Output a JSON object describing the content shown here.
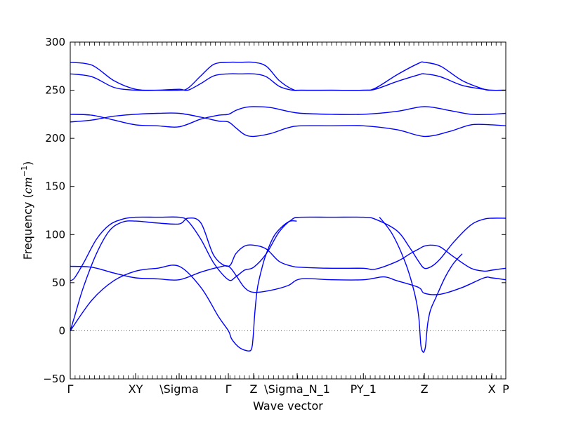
{
  "chart_data": {
    "type": "line",
    "xlabel": "Wave vector",
    "ylabel_prefix": "Frequency (",
    "ylabel_unit": "cm",
    "ylabel_exp": "−1",
    "ylabel_suffix": ")",
    "ylim": [
      -50,
      300
    ],
    "yticks": [
      -50,
      0,
      50,
      100,
      150,
      200,
      250,
      300
    ],
    "xlim": [
      0,
      1
    ],
    "grid": false,
    "line_color": "#0000ff",
    "zero_line_color": "#555555",
    "special_points": [
      {
        "label": "Γ",
        "x": 0.0
      },
      {
        "label": "XY",
        "x": 0.15
      },
      {
        "label": "\\Sigma",
        "x": 0.25
      },
      {
        "label": "Γ",
        "x": 0.363
      },
      {
        "label": "Z",
        "x": 0.421
      },
      {
        "label": "\\Sigma_N_1",
        "x": 0.521
      },
      {
        "label": "PY_1",
        "x": 0.673
      },
      {
        "label": "Z",
        "x": 0.813
      },
      {
        "label": "X",
        "x": 0.968
      },
      {
        "label": "P",
        "x": 1.0
      }
    ],
    "series": [
      {
        "x": [
          0,
          0.05,
          0.1,
          0.15,
          0.2,
          0.25,
          0.27,
          0.3,
          0.33,
          0.363,
          0.39,
          0.421,
          0.45,
          0.48,
          0.51,
          0.53,
          0.6,
          0.673,
          0.7,
          0.75,
          0.8,
          0.813,
          0.85,
          0.9,
          0.95,
          0.968,
          1.0
        ],
        "y": [
          279,
          276,
          260,
          251,
          250,
          250,
          252,
          265,
          277,
          279,
          279,
          279,
          275,
          260,
          251,
          250,
          250,
          250,
          252,
          266,
          278,
          279,
          275,
          260,
          251,
          250,
          250
        ]
      },
      {
        "x": [
          0,
          0.05,
          0.1,
          0.15,
          0.2,
          0.25,
          0.27,
          0.3,
          0.33,
          0.363,
          0.39,
          0.421,
          0.45,
          0.48,
          0.51,
          0.53,
          0.6,
          0.673,
          0.7,
          0.75,
          0.8,
          0.813,
          0.85,
          0.9,
          0.95,
          0.968,
          1.0
        ],
        "y": [
          267,
          264,
          253,
          250,
          250,
          251,
          250,
          257,
          265,
          267,
          267,
          267,
          264,
          254,
          250,
          250,
          250,
          250,
          251,
          259,
          266,
          267,
          264,
          255,
          251,
          250,
          250
        ]
      },
      {
        "x": [
          0,
          0.05,
          0.1,
          0.15,
          0.2,
          0.25,
          0.3,
          0.34,
          0.363,
          0.38,
          0.4,
          0.421,
          0.46,
          0.5,
          0.53,
          0.6,
          0.673,
          0.75,
          0.813,
          0.87,
          0.92,
          0.968,
          1.0
        ],
        "y": [
          225,
          224,
          219,
          214,
          213,
          212,
          220,
          224,
          225,
          229,
          232,
          233,
          232,
          228,
          226,
          225,
          225,
          228,
          233,
          229,
          225,
          225,
          226
        ]
      },
      {
        "x": [
          0,
          0.05,
          0.1,
          0.15,
          0.2,
          0.25,
          0.3,
          0.34,
          0.363,
          0.38,
          0.4,
          0.421,
          0.46,
          0.5,
          0.53,
          0.6,
          0.673,
          0.75,
          0.813,
          0.87,
          0.92,
          0.968,
          1.0
        ],
        "y": [
          217,
          219,
          223,
          225,
          226,
          226,
          222,
          218,
          217,
          211,
          204,
          202,
          205,
          211,
          213,
          213,
          213,
          209,
          202,
          207,
          214,
          214,
          213
        ]
      },
      {
        "x": [
          0,
          0.01,
          0.03,
          0.06,
          0.09,
          0.12,
          0.15,
          0.2,
          0.25,
          0.27,
          0.3,
          0.33,
          0.363,
          0.38,
          0.4,
          0.421,
          0.45,
          0.48,
          0.51,
          0.53,
          0.6,
          0.673,
          0.7,
          0.75,
          0.78,
          0.8,
          0.813,
          0.83,
          0.85,
          0.88,
          0.92,
          0.95,
          0.968,
          1.0
        ],
        "y": [
          52,
          55,
          70,
          95,
          110,
          116,
          118,
          118,
          118,
          114,
          95,
          70,
          53,
          56,
          63,
          66,
          80,
          103,
          116,
          118,
          118,
          118,
          116,
          104,
          86,
          72,
          65,
          67,
          75,
          92,
          110,
          116,
          117,
          117
        ]
      },
      {
        "x": [
          0,
          0.01,
          0.03,
          0.06,
          0.09,
          0.12,
          0.15,
          0.2,
          0.25,
          0.27,
          0.3,
          0.33,
          0.363,
          0.38,
          0.4,
          0.421,
          0.45,
          0.48,
          0.51,
          0.53,
          0.6,
          0.673,
          0.7,
          0.75,
          0.78,
          0.8,
          0.813,
          0.83,
          0.85,
          0.88,
          0.92,
          0.95,
          0.968,
          1.0
        ],
        "y": [
          0,
          15,
          45,
          80,
          104,
          113,
          114,
          112,
          111,
          117,
          112,
          78,
          67,
          80,
          88,
          89,
          85,
          72,
          67,
          66,
          65,
          65,
          64,
          72,
          80,
          85,
          88,
          89,
          87,
          77,
          65,
          62,
          63,
          65
        ]
      },
      {
        "x": [
          0,
          0.05,
          0.1,
          0.15,
          0.2,
          0.25,
          0.3,
          0.34,
          0.363,
          0.38,
          0.4,
          0.421,
          0.46,
          0.5,
          0.53,
          0.6,
          0.673,
          0.72,
          0.75,
          0.8,
          0.813,
          0.85,
          0.9,
          0.95,
          0.968,
          1.0
        ],
        "y": [
          67,
          66,
          60,
          55,
          54,
          53,
          61,
          66,
          67,
          58,
          45,
          40,
          42,
          47,
          54,
          53,
          53,
          56,
          52,
          45,
          39,
          38,
          45,
          55,
          55,
          53
        ]
      },
      {
        "x": [
          0,
          0.05,
          0.1,
          0.15,
          0.2,
          0.25,
          0.3,
          0.34,
          0.363,
          0.37,
          0.38,
          0.39,
          0.4,
          0.41,
          0.415,
          0.418,
          0.421,
          0.424,
          0.43,
          0.44,
          0.45,
          0.47,
          0.5,
          0.52
        ],
        "y": [
          0,
          32,
          52,
          62,
          65,
          67,
          45,
          15,
          0,
          -8,
          -14,
          -18,
          -20,
          -21,
          -20,
          -15,
          0,
          20,
          45,
          65,
          80,
          100,
          113,
          114
        ]
      },
      {
        "x": [
          0.71,
          0.74,
          0.77,
          0.79,
          0.8,
          0.805,
          0.81,
          0.813,
          0.816,
          0.82,
          0.825,
          0.83,
          0.84,
          0.86,
          0.88,
          0.9
        ],
        "y": [
          118,
          100,
          70,
          40,
          15,
          -15,
          -22,
          -21,
          -15,
          5,
          18,
          25,
          35,
          55,
          70,
          80
        ]
      }
    ]
  }
}
